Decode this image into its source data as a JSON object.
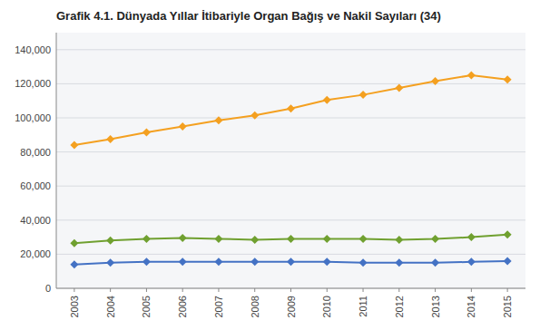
{
  "chart_data": {
    "type": "line",
    "title": "Grafik 4.1. Dünyada Yıllar İtibariyle Organ Bağış ve Nakil Sayıları (34)",
    "x": [
      2003,
      2004,
      2005,
      2006,
      2007,
      2008,
      2009,
      2010,
      2011,
      2012,
      2013,
      2014,
      2015
    ],
    "series": [
      {
        "color": "#F4A020",
        "values": [
          84000,
          87500,
          91500,
          95000,
          98500,
          101500,
          105500,
          110500,
          113500,
          117500,
          121500,
          125000,
          122500
        ]
      },
      {
        "color": "#70A030",
        "values": [
          26500,
          28000,
          29000,
          29500,
          29000,
          28500,
          29000,
          29000,
          29000,
          28500,
          29000,
          30000,
          31500
        ]
      },
      {
        "color": "#4472C4",
        "values": [
          14000,
          15000,
          15500,
          15500,
          15500,
          15500,
          15500,
          15500,
          15000,
          15000,
          15000,
          15500,
          16000
        ]
      }
    ],
    "xlim": [
      2002.5,
      2015.5
    ],
    "xticks": [
      2003,
      2004,
      2005,
      2006,
      2007,
      2008,
      2009,
      2010,
      2011,
      2012,
      2013,
      2014,
      2015
    ],
    "ylim": [
      0,
      150000
    ],
    "yticks": [
      0,
      {
        "value": 20000,
        "label": "20,000"
      },
      {
        "value": 40000,
        "label": "40,000"
      },
      {
        "value": 60000,
        "label": "60,000"
      },
      {
        "value": 80000,
        "label": "80,000"
      },
      {
        "value": 100000,
        "label": "100,000"
      },
      {
        "value": 120000,
        "label": "120,000"
      },
      {
        "value": 140000,
        "label": "140,000"
      }
    ],
    "grid": true,
    "marker": "diamond"
  }
}
